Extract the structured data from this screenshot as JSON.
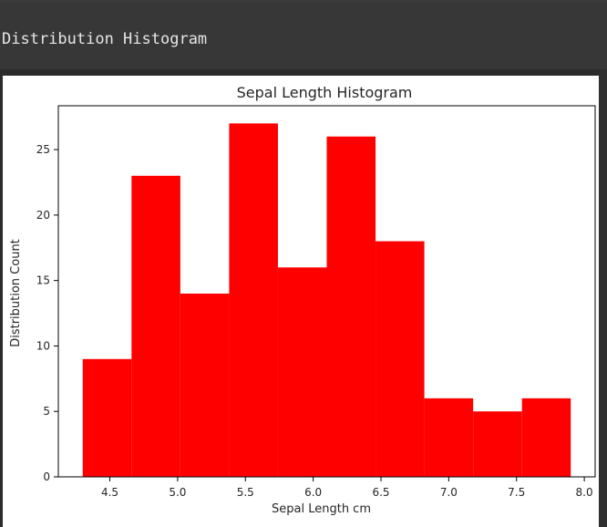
{
  "output": {
    "text": "Distribution Histogram"
  },
  "chart_data": {
    "type": "histogram",
    "title": "Sepal Length Histogram",
    "xlabel": "Sepal Length cm",
    "ylabel": "Distribution Count",
    "bin_edges": [
      4.3,
      4.66,
      5.02,
      5.38,
      5.74,
      6.1,
      6.46,
      6.82,
      7.18,
      7.54,
      7.9
    ],
    "values": [
      9,
      23,
      14,
      27,
      16,
      26,
      18,
      6,
      5,
      6
    ],
    "xlim": [
      4.12,
      8.08
    ],
    "ylim": [
      0,
      28.35
    ],
    "x_ticks": [
      "4.5",
      "5.0",
      "5.5",
      "6.0",
      "6.5",
      "7.0",
      "7.5",
      "8.0"
    ],
    "y_ticks": [
      "0",
      "5",
      "10",
      "15",
      "20",
      "25"
    ],
    "bar_color": "#ff0000",
    "grid": false,
    "legend": "none"
  }
}
